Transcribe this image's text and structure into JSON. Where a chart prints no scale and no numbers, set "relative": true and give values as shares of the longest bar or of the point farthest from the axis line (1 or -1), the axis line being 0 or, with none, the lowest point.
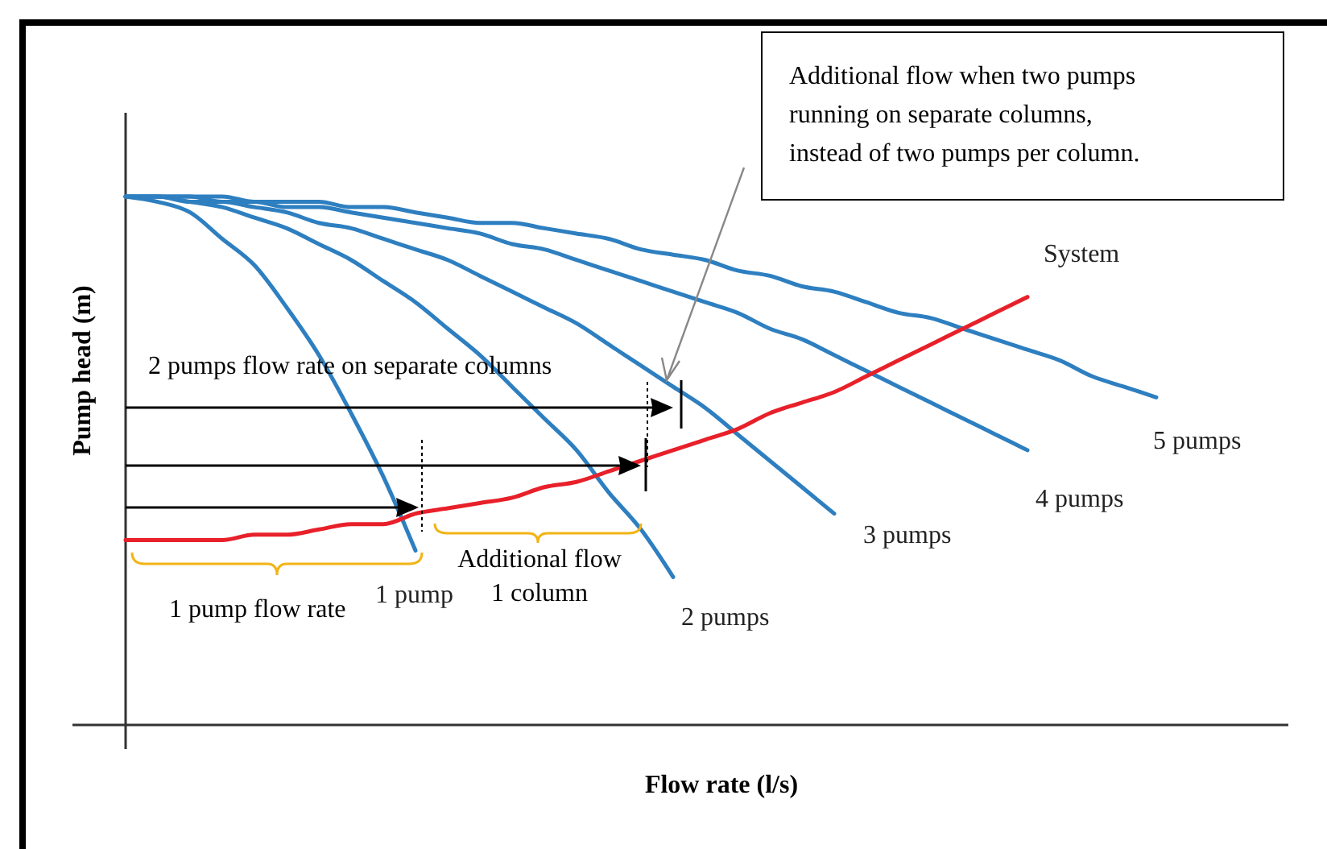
{
  "chart_data": {
    "type": "line",
    "relative": true,
    "xlabel": "Flow rate (l/s)",
    "ylabel": "Pump head (m)",
    "legend": false,
    "marker": "none",
    "line_style": "solid",
    "categories": [
      null,
      null,
      null,
      null,
      null,
      null,
      null,
      null,
      null,
      null,
      null,
      null,
      null,
      null,
      null,
      null,
      null,
      null,
      null,
      null,
      null,
      null,
      null,
      null,
      null,
      null,
      null,
      null,
      null,
      null,
      null,
      null,
      null
    ],
    "series": [
      {
        "name": "1 pump",
        "color": "#2e7fc0",
        "values": [
          1.0,
          0.99,
          0.97,
          0.92,
          0.87,
          0.79,
          0.7,
          0.59,
          0.47,
          0.33,
          null,
          null,
          null,
          null,
          null,
          null,
          null,
          null,
          null,
          null,
          null,
          null,
          null,
          null,
          null,
          null,
          null,
          null,
          null,
          null,
          null,
          null,
          null
        ]
      },
      {
        "name": "2 pumps",
        "color": "#2e7fc0",
        "values": [
          1.0,
          1.0,
          0.99,
          0.98,
          0.96,
          0.94,
          0.91,
          0.88,
          0.84,
          0.8,
          0.75,
          0.7,
          0.64,
          0.58,
          0.52,
          0.44,
          0.37,
          0.28,
          null,
          null,
          null,
          null,
          null,
          null,
          null,
          null,
          null,
          null,
          null,
          null,
          null,
          null,
          null
        ]
      },
      {
        "name": "3 pumps",
        "color": "#2e7fc0",
        "values": [
          1.0,
          1.0,
          0.99,
          0.99,
          0.98,
          0.97,
          0.95,
          0.94,
          0.92,
          0.9,
          0.88,
          0.85,
          0.82,
          0.79,
          0.76,
          0.72,
          0.68,
          0.64,
          0.6,
          0.55,
          0.5,
          0.45,
          0.4,
          null,
          null,
          null,
          null,
          null,
          null,
          null,
          null,
          null,
          null
        ]
      },
      {
        "name": "4 pumps",
        "color": "#2e7fc0",
        "values": [
          1.0,
          1.0,
          1.0,
          0.99,
          0.99,
          0.98,
          0.98,
          0.97,
          0.96,
          0.95,
          0.94,
          0.93,
          0.91,
          0.9,
          0.88,
          0.86,
          0.84,
          0.82,
          0.8,
          0.78,
          0.75,
          0.73,
          0.7,
          0.67,
          0.64,
          0.61,
          0.58,
          0.55,
          0.52,
          null,
          null,
          null,
          null
        ]
      },
      {
        "name": "5 pumps",
        "color": "#2e7fc0",
        "values": [
          1.0,
          1.0,
          1.0,
          1.0,
          0.99,
          0.99,
          0.99,
          0.98,
          0.98,
          0.97,
          0.96,
          0.95,
          0.95,
          0.94,
          0.93,
          0.92,
          0.9,
          0.89,
          0.88,
          0.86,
          0.85,
          0.83,
          0.82,
          0.8,
          0.78,
          0.77,
          0.75,
          0.73,
          0.71,
          0.69,
          0.66,
          0.64,
          0.62
        ]
      },
      {
        "name": "System",
        "color": "#e8202a",
        "values": [
          0.35,
          0.35,
          0.35,
          0.35,
          0.36,
          0.36,
          0.37,
          0.38,
          0.38,
          0.4,
          0.41,
          0.42,
          0.43,
          0.45,
          0.46,
          0.48,
          0.5,
          0.52,
          0.54,
          0.56,
          0.59,
          0.61,
          0.63,
          0.66,
          0.69,
          0.72,
          0.75,
          0.78,
          0.81,
          null,
          null,
          null,
          null
        ]
      }
    ],
    "annotations": [
      "Additional flow when two pumps running on separate columns, instead of two pumps per column.",
      "2 pumps flow rate on separate columns",
      "1 pump flow rate",
      "Additional flow 1 column"
    ]
  }
}
